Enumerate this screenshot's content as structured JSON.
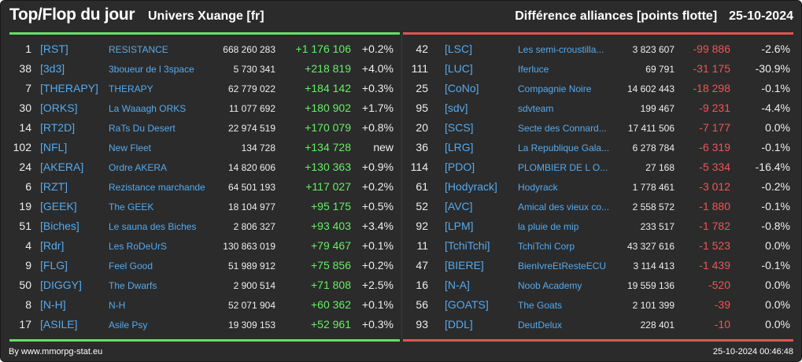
{
  "header": {
    "title": "Top/Flop du jour",
    "universe": "Univers Xuange [fr]",
    "metric": "Différence alliances [points flotte]",
    "date": "25-10-2024"
  },
  "colors": {
    "positive": "#66ee66",
    "negative": "#ee5555",
    "link": "#55aaee",
    "background": "#2b2b2b"
  },
  "top": [
    {
      "rank": "1",
      "tag": "[RST]",
      "name": "RESISTANCE",
      "points": "668 260 283",
      "diff": "+1 176 106",
      "pct": "+0.2%"
    },
    {
      "rank": "38",
      "tag": "[3d3]",
      "name": "3boueur de l 3space",
      "points": "5 730 341",
      "diff": "+218 819",
      "pct": "+4.0%"
    },
    {
      "rank": "7",
      "tag": "[THERAPY]",
      "name": "THERAPY",
      "points": "62 779 022",
      "diff": "+184 142",
      "pct": "+0.3%"
    },
    {
      "rank": "30",
      "tag": "[ORKS]",
      "name": "La Waaagh ORKS",
      "points": "11 077 692",
      "diff": "+180 902",
      "pct": "+1.7%"
    },
    {
      "rank": "14",
      "tag": "[RT2D]",
      "name": "RaTs Du Desert",
      "points": "22 974 519",
      "diff": "+170 079",
      "pct": "+0.8%"
    },
    {
      "rank": "102",
      "tag": "[NFL]",
      "name": "New Fleet",
      "points": "134 728",
      "diff": "+134 728",
      "pct": "new"
    },
    {
      "rank": "24",
      "tag": "[AKERA]",
      "name": "Ordre AKERA",
      "points": "14 820 606",
      "diff": "+130 363",
      "pct": "+0.9%"
    },
    {
      "rank": "6",
      "tag": "[RZT]",
      "name": "Rezistance marchande",
      "points": "64 501 193",
      "diff": "+117 027",
      "pct": "+0.2%"
    },
    {
      "rank": "19",
      "tag": "[GEEK]",
      "name": "The GEEK",
      "points": "18 104 977",
      "diff": "+95 175",
      "pct": "+0.5%"
    },
    {
      "rank": "51",
      "tag": "[Biches]",
      "name": "Le sauna des Biches",
      "points": "2 806 327",
      "diff": "+93 403",
      "pct": "+3.4%"
    },
    {
      "rank": "4",
      "tag": "[Rdr]",
      "name": "Les RoDeUrS",
      "points": "130 863 019",
      "diff": "+79 467",
      "pct": "+0.1%"
    },
    {
      "rank": "9",
      "tag": "[FLG]",
      "name": "Feel Good",
      "points": "51 989 912",
      "diff": "+75 856",
      "pct": "+0.2%"
    },
    {
      "rank": "50",
      "tag": "[DIGGY]",
      "name": "The Dwarfs",
      "points": "2 900 514",
      "diff": "+71 808",
      "pct": "+2.5%"
    },
    {
      "rank": "8",
      "tag": "[N-H]",
      "name": "N-H",
      "points": "52 071 904",
      "diff": "+60 362",
      "pct": "+0.1%"
    },
    {
      "rank": "17",
      "tag": "[ASILE]",
      "name": "Asile Psy",
      "points": "19 309 153",
      "diff": "+52 961",
      "pct": "+0.3%"
    }
  ],
  "flop": [
    {
      "rank": "42",
      "tag": "[LSC]",
      "name": "Les semi-croustilla...",
      "points": "3 823 607",
      "diff": "-99 886",
      "pct": "-2.6%"
    },
    {
      "rank": "111",
      "tag": "[LUC]",
      "name": "Iferluce",
      "points": "69 791",
      "diff": "-31 175",
      "pct": "-30.9%"
    },
    {
      "rank": "25",
      "tag": "[CoNo]",
      "name": "Compagnie Noire",
      "points": "14 602 443",
      "diff": "-18 298",
      "pct": "-0.1%"
    },
    {
      "rank": "95",
      "tag": "[sdv]",
      "name": "sdvteam",
      "points": "199 467",
      "diff": "-9 231",
      "pct": "-4.4%"
    },
    {
      "rank": "20",
      "tag": "[SCS]",
      "name": "Secte des Connard...",
      "points": "17 411 506",
      "diff": "-7 177",
      "pct": "0.0%"
    },
    {
      "rank": "36",
      "tag": "[LRG]",
      "name": "La Republique Gala...",
      "points": "6 278 784",
      "diff": "-6 319",
      "pct": "-0.1%"
    },
    {
      "rank": "114",
      "tag": "[PDO]",
      "name": "PLOMBIER DE L O...",
      "points": "27 168",
      "diff": "-5 334",
      "pct": "-16.4%"
    },
    {
      "rank": "61",
      "tag": "[Hodyrack]",
      "name": "Hodyrack",
      "points": "1 778 461",
      "diff": "-3 012",
      "pct": "-0.2%"
    },
    {
      "rank": "52",
      "tag": "[AVC]",
      "name": "Amical des vieux co...",
      "points": "2 558 572",
      "diff": "-1 880",
      "pct": "-0.1%"
    },
    {
      "rank": "92",
      "tag": "[LPM]",
      "name": "la pluie de mip",
      "points": "233 517",
      "diff": "-1 782",
      "pct": "-0.8%"
    },
    {
      "rank": "11",
      "tag": "[TchiTchi]",
      "name": "TchiTchi Corp",
      "points": "43 327 616",
      "diff": "-1 523",
      "pct": "0.0%"
    },
    {
      "rank": "47",
      "tag": "[BIERE]",
      "name": "BienIvreEtResteECU",
      "points": "3 114 413",
      "diff": "-1 439",
      "pct": "-0.1%"
    },
    {
      "rank": "16",
      "tag": "[N-A]",
      "name": "Noob Academy",
      "points": "19 559 136",
      "diff": "-520",
      "pct": "0.0%"
    },
    {
      "rank": "56",
      "tag": "[GOATS]",
      "name": "The Goats",
      "points": "2 101 399",
      "diff": "-39",
      "pct": "0.0%"
    },
    {
      "rank": "93",
      "tag": "[DDL]",
      "name": "DeutDelux",
      "points": "228 401",
      "diff": "-10",
      "pct": "0.0%"
    }
  ],
  "footer": {
    "credit": "By www.mmorpg-stat.eu",
    "timestamp": "25-10-2024 00:46:48"
  }
}
